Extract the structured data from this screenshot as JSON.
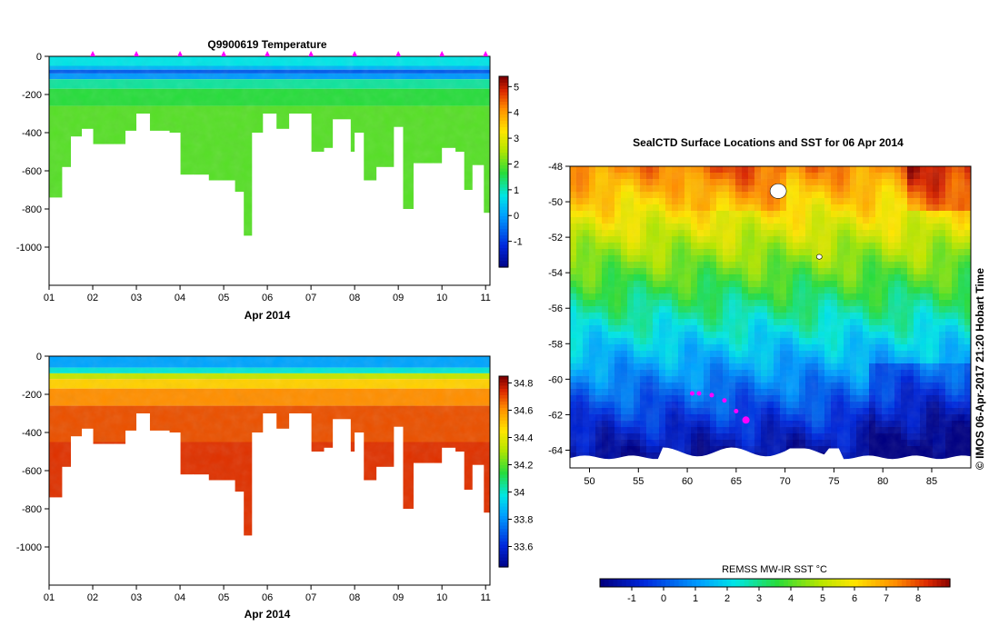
{
  "chart_data": [
    {
      "type": "heatmap",
      "id": "temperature-profile",
      "title": "Q9900619  Temperature",
      "xlabel": "Apr 2014",
      "ylabel": "",
      "x_ticks": [
        "01",
        "02",
        "03",
        "04",
        "05",
        "06",
        "07",
        "08",
        "09",
        "10",
        "11"
      ],
      "xlim": [
        1,
        11.1
      ],
      "ylim": [
        -1200,
        0
      ],
      "y_ticks": [
        0,
        -200,
        -400,
        -600,
        -800,
        -1000
      ],
      "colorbar": {
        "min": -2,
        "max": 5.4,
        "ticks": [
          5,
          4,
          3,
          2,
          1,
          0,
          -1
        ]
      },
      "profile_markers_days": [
        2,
        3,
        4,
        5,
        6,
        7,
        8,
        9,
        10,
        11
      ],
      "profile_depths": {
        "day": [
          1.0,
          1.3,
          1.5,
          1.75,
          2.0,
          2.5,
          2.75,
          3.0,
          3.3,
          3.75,
          4.0,
          4.3,
          4.65,
          5.0,
          5.25,
          5.45,
          5.65,
          5.9,
          6.2,
          6.5,
          6.8,
          7.0,
          7.1,
          7.3,
          7.5,
          7.9,
          8.0,
          8.2,
          8.5,
          8.9,
          9.1,
          9.35,
          9.8,
          10.0,
          10.3,
          10.5,
          10.7,
          10.95
        ],
        "max_depth": [
          -740,
          -580,
          -420,
          -380,
          -460,
          -460,
          -390,
          -300,
          -390,
          -400,
          -620,
          -620,
          -650,
          -650,
          -710,
          -940,
          -400,
          -300,
          -380,
          -300,
          -300,
          -500,
          -500,
          -480,
          -330,
          -500,
          -400,
          -650,
          -580,
          -370,
          -800,
          -560,
          -560,
          -480,
          -500,
          -700,
          -570,
          -820
        ]
      },
      "layers": [
        {
          "from": 0,
          "to": -50,
          "value": 0.8
        },
        {
          "from": -50,
          "to": -70,
          "value": 0.3
        },
        {
          "from": -70,
          "to": -90,
          "value": -0.6
        },
        {
          "from": -90,
          "to": -120,
          "value": 0.0
        },
        {
          "from": -120,
          "to": -170,
          "value": 1.2
        },
        {
          "from": -170,
          "to": -260,
          "value": 1.7
        },
        {
          "from": -260,
          "to": -1200,
          "value": 2.0
        }
      ]
    },
    {
      "type": "heatmap",
      "id": "salinity-profile",
      "title": "",
      "xlabel": "Apr 2014",
      "ylabel": "",
      "x_ticks": [
        "01",
        "02",
        "03",
        "04",
        "05",
        "06",
        "07",
        "08",
        "09",
        "10",
        "11"
      ],
      "xlim": [
        1,
        11.1
      ],
      "ylim": [
        -1200,
        0
      ],
      "y_ticks": [
        0,
        -200,
        -400,
        -600,
        -800,
        -1000
      ],
      "colorbar": {
        "min": 33.45,
        "max": 34.85,
        "ticks": [
          "34.8",
          "34.6",
          "34.4",
          "34.2",
          "34",
          "33.8",
          "33.6"
        ]
      },
      "layers": [
        {
          "from": 0,
          "to": -60,
          "value": 33.85
        },
        {
          "from": -60,
          "to": -90,
          "value": 34.0
        },
        {
          "from": -90,
          "to": -120,
          "value": 34.35
        },
        {
          "from": -120,
          "to": -170,
          "value": 34.5
        },
        {
          "from": -170,
          "to": -260,
          "value": 34.62
        },
        {
          "from": -260,
          "to": -450,
          "value": 34.7
        },
        {
          "from": -450,
          "to": -1200,
          "value": 34.74
        }
      ]
    },
    {
      "type": "heatmap",
      "id": "sst-map",
      "title": "SealCTD Surface Locations and SST for 06 Apr 2014",
      "xlabel": "",
      "ylabel": "",
      "xlim": [
        48,
        89
      ],
      "ylim": [
        -65,
        -48
      ],
      "x_ticks": [
        50,
        55,
        60,
        65,
        70,
        75,
        80,
        85
      ],
      "y_ticks": [
        -48,
        -50,
        -52,
        -54,
        -56,
        -58,
        -60,
        -62,
        -64
      ],
      "colorbar": {
        "label": "REMSS MW-IR SST °C",
        "min": -2,
        "max": 9,
        "ticks": [
          -1,
          0,
          1,
          2,
          3,
          4,
          5,
          6,
          7,
          8
        ]
      },
      "credit": "© IMOS 06-Apr-2017 21:20 Hobart Time",
      "magenta_locations": [
        {
          "lon": 60.5,
          "lat": -60.8
        },
        {
          "lon": 61.2,
          "lat": -60.8
        },
        {
          "lon": 62.5,
          "lat": -60.9
        },
        {
          "lon": 63.8,
          "lat": -61.2
        },
        {
          "lon": 65.0,
          "lat": -61.8
        },
        {
          "lon": 66.0,
          "lat": -62.3
        }
      ],
      "islands": [
        {
          "lon": 69.3,
          "lat": -49.4
        },
        {
          "lon": 73.5,
          "lat": -53.1
        }
      ]
    }
  ],
  "colors": {
    "marker_magenta": "#ff00ff",
    "land_white": "#ffffff"
  }
}
